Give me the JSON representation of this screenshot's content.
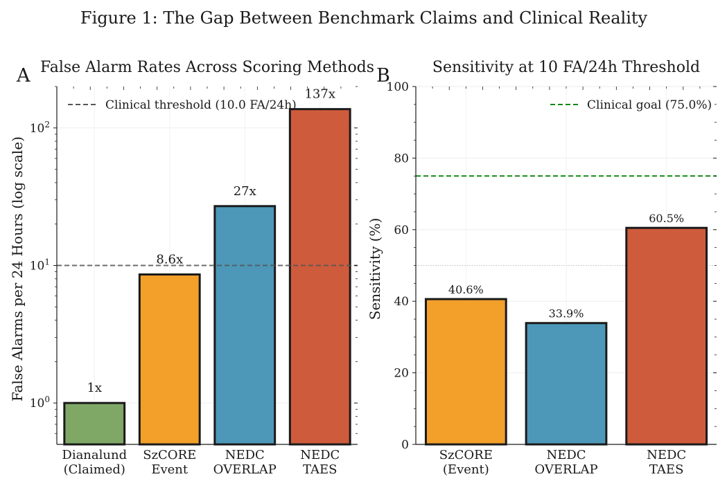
{
  "figure_title": "Figure 1: The Gap Between Benchmark Claims and Clinical Reality",
  "chart_data": [
    {
      "panel": "A",
      "type": "bar",
      "title": "False Alarm Rates Across Scoring Methods",
      "ylabel": "False Alarms per 24 Hours (log scale)",
      "xlabel": "",
      "yscale": "log",
      "ylim": [
        0.5,
        200
      ],
      "yticks": [
        1,
        10,
        100
      ],
      "yticklabels": [
        "10^0",
        "10^1",
        "10^2"
      ],
      "categories": [
        [
          "Dianalund",
          "(Claimed)"
        ],
        [
          "SzCORE",
          "Event"
        ],
        [
          "NEDC",
          "OVERLAP"
        ],
        [
          "NEDC",
          "TAES"
        ]
      ],
      "values": [
        1.0,
        8.6,
        27,
        137
      ],
      "data_labels": [
        "1x",
        "8.6x",
        "27x",
        "137x"
      ],
      "colors": [
        "#7fa866",
        "#f2a02a",
        "#4d98b8",
        "#cf5b3d"
      ],
      "reference_line": {
        "value": 10,
        "label": "Clinical threshold (10.0 FA/24h)",
        "color": "#555555",
        "style": "dashed"
      },
      "grid": true,
      "legend": "top-left"
    },
    {
      "panel": "B",
      "type": "bar",
      "title": "Sensitivity at 10 FA/24h Threshold",
      "ylabel": "Sensitivity (%)",
      "xlabel": "",
      "yscale": "linear",
      "ylim": [
        0,
        100
      ],
      "yticks": [
        0,
        20,
        40,
        60,
        80,
        100
      ],
      "categories": [
        [
          "SzCORE",
          "(Event)"
        ],
        [
          "NEDC",
          "OVERLAP"
        ],
        [
          "NEDC",
          "TAES"
        ]
      ],
      "values": [
        40.6,
        33.9,
        60.5
      ],
      "data_labels": [
        "40.6%",
        "33.9%",
        "60.5%"
      ],
      "colors": [
        "#f2a02a",
        "#4d98b8",
        "#cf5b3d"
      ],
      "reference_line": {
        "value": 75,
        "label": "Clinical goal (75.0%)",
        "color": "#118811",
        "style": "dashed"
      },
      "secondary_line": {
        "value": 50,
        "color": "#bbbbbb",
        "style": "dotted"
      },
      "grid": true,
      "legend": "top-right"
    }
  ]
}
